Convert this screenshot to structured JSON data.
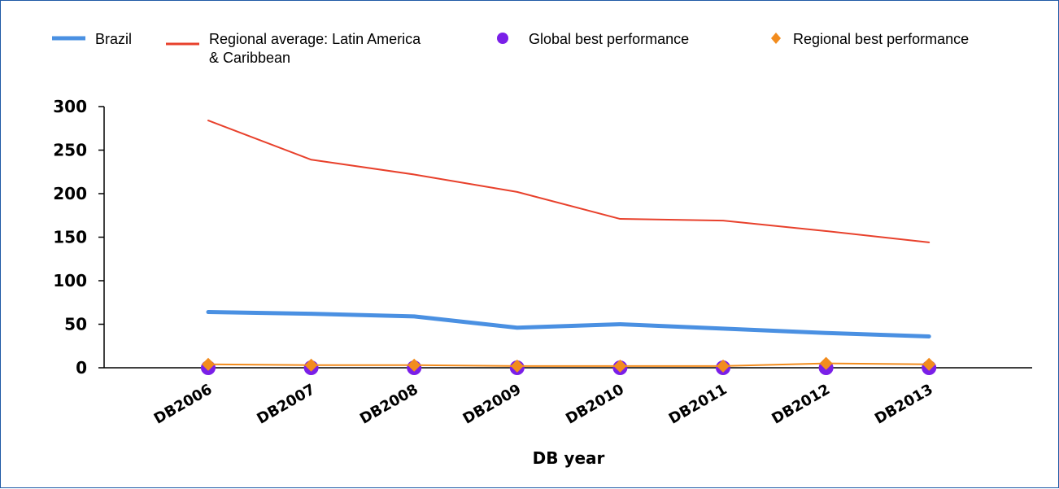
{
  "chart_data": {
    "type": "line",
    "title": "",
    "xlabel": "DB year",
    "ylabel": "",
    "categories": [
      "DB2006",
      "DB2007",
      "DB2008",
      "DB2009",
      "DB2010",
      "DB2011",
      "DB2012",
      "DB2013"
    ],
    "ylim": [
      0,
      300
    ],
    "yticks": [
      0,
      50,
      100,
      150,
      200,
      250,
      300
    ],
    "grid": false,
    "legend_position": "top",
    "series": [
      {
        "name": "Brazil",
        "kind": "line",
        "color": "#4a90e2",
        "values": [
          64,
          62,
          59,
          46,
          50,
          45,
          40,
          36
        ]
      },
      {
        "name": "Regional average: Latin America & Caribbean",
        "kind": "line",
        "color": "#e8412c",
        "values": [
          284,
          239,
          222,
          202,
          171,
          169,
          157,
          144
        ]
      },
      {
        "name": "Global best performance",
        "kind": "marker",
        "marker": "circle",
        "color": "#7a1fe8",
        "values": [
          0,
          0,
          0,
          0,
          0,
          0,
          0,
          0
        ]
      },
      {
        "name": "Regional best performance",
        "kind": "marker",
        "marker": "diamond",
        "color": "#f28c1e",
        "values": [
          4,
          3,
          3,
          2,
          2,
          2,
          5,
          4
        ]
      }
    ]
  },
  "legend": {
    "brazil": "Brazil",
    "regional_avg_line1": "Regional average: Latin America",
    "regional_avg_line2": "& Caribbean",
    "global_best": "Global best performance",
    "regional_best": "Regional best performance"
  }
}
